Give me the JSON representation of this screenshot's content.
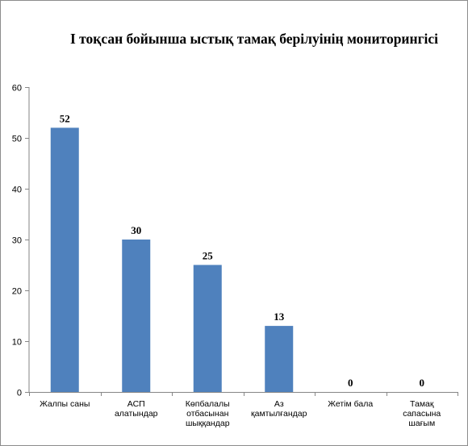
{
  "colors": {
    "bar": "#4f81bd",
    "axis": "#868686",
    "background": "#ffffff"
  },
  "chart_data": {
    "type": "bar",
    "title": "І тоқсан бойынша ыстық тамақ берілуінің мониторингісі",
    "categories": [
      [
        "Жалпы саны"
      ],
      [
        "АСП",
        "алатындар"
      ],
      [
        "Көпбалалы",
        "отбасынан",
        "шыққандар"
      ],
      [
        "Аз",
        "қамтылғандар"
      ],
      [
        "Жетім бала"
      ],
      [
        "Тамақ",
        "сапасына",
        "шағым"
      ]
    ],
    "values": [
      52,
      30,
      25,
      13,
      0,
      0
    ],
    "ylim": [
      0,
      60
    ],
    "yticks": [
      0,
      10,
      20,
      30,
      40,
      50,
      60
    ],
    "grid": false,
    "legend": "none",
    "data_labels": true
  }
}
